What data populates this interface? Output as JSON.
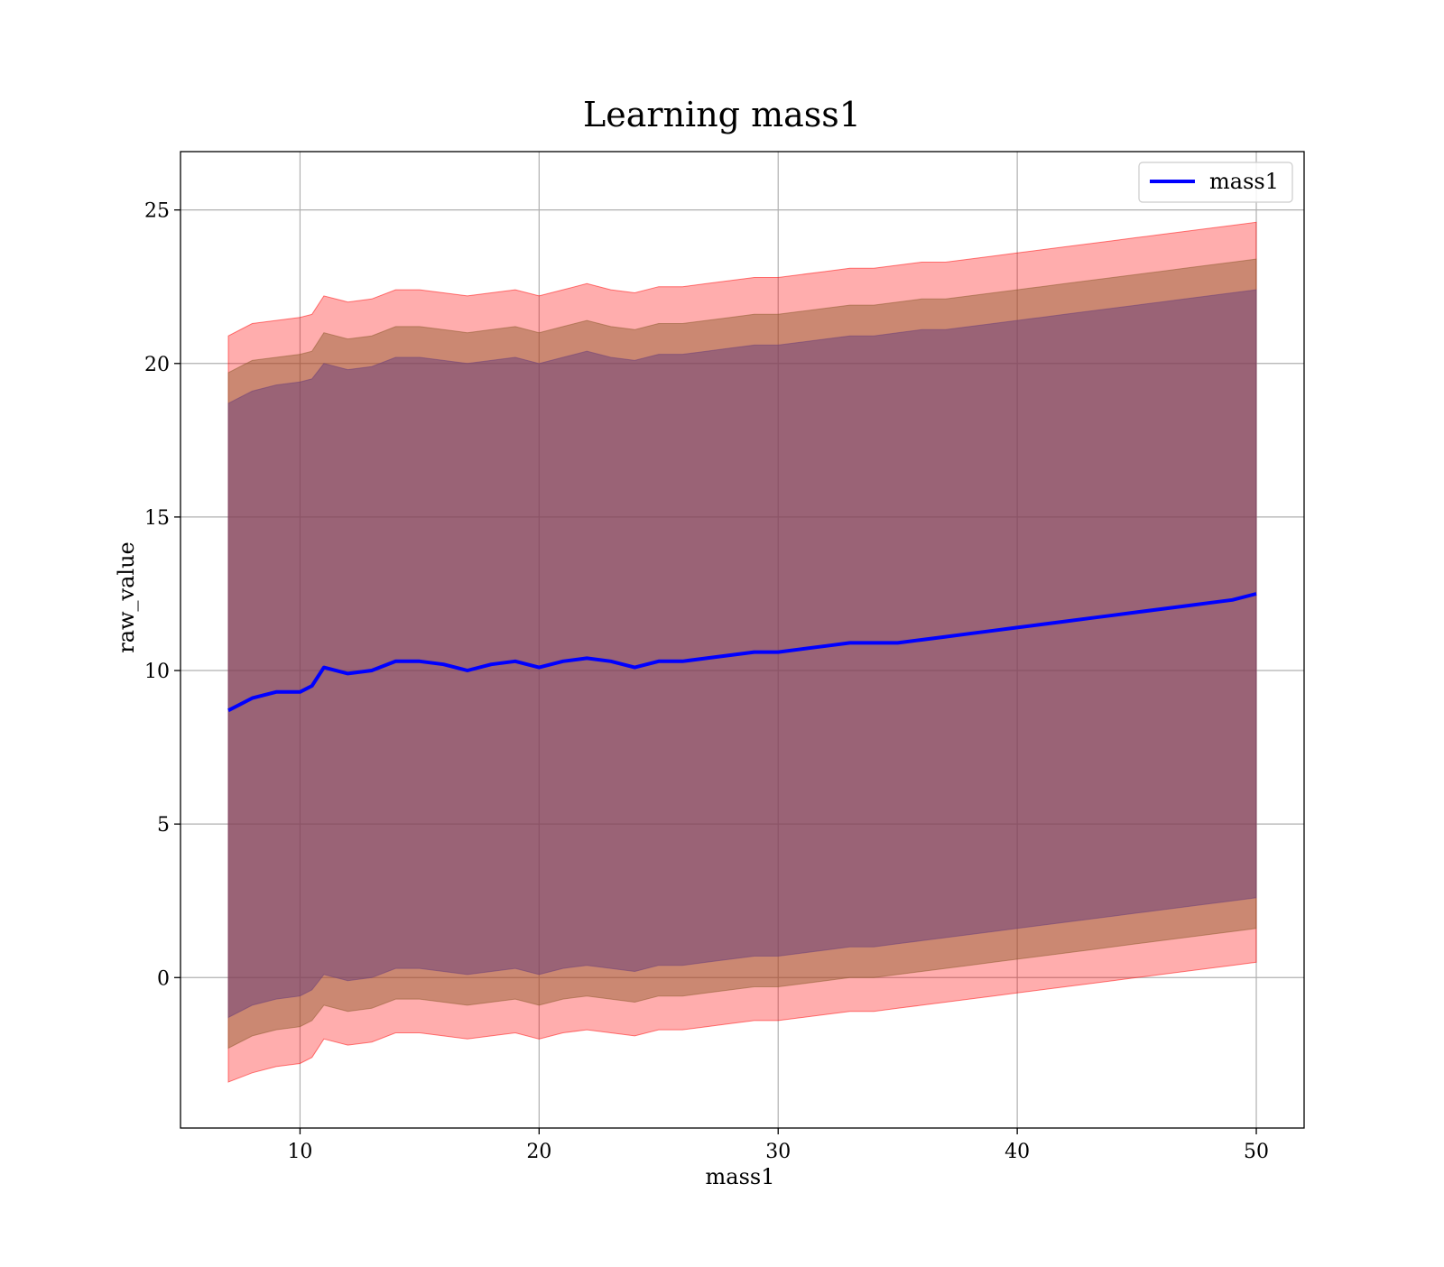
{
  "chart_data": {
    "type": "line",
    "title": "Learning mass1",
    "xlabel": "mass1",
    "ylabel": "raw_value",
    "xlim": [
      5,
      52
    ],
    "ylim": [
      -4.9,
      26.9
    ],
    "xticks": [
      10,
      20,
      30,
      40,
      50
    ],
    "yticks": [
      0,
      5,
      10,
      15,
      20,
      25
    ],
    "grid": true,
    "legend": {
      "position": "upper right",
      "entries": [
        "mass1"
      ]
    },
    "series": [
      {
        "name": "mass1",
        "color": "#0000ff",
        "x": [
          7,
          8,
          9,
          10,
          10.5,
          11,
          12,
          13,
          14,
          15,
          16,
          17,
          18,
          19,
          20,
          21,
          22,
          23,
          24,
          25,
          26,
          27,
          28,
          29,
          30,
          31,
          32,
          33,
          34,
          35,
          36,
          37,
          38,
          39,
          40,
          41,
          42,
          43,
          44,
          45,
          46,
          47,
          48,
          49,
          50
        ],
        "y": [
          8.7,
          9.1,
          9.3,
          9.3,
          9.5,
          10.1,
          9.9,
          10.0,
          10.3,
          10.3,
          10.2,
          10.0,
          10.2,
          10.3,
          10.1,
          10.3,
          10.4,
          10.3,
          10.1,
          10.3,
          10.3,
          10.4,
          10.5,
          10.6,
          10.6,
          10.7,
          10.8,
          10.9,
          10.9,
          10.9,
          11.0,
          11.1,
          11.2,
          11.3,
          11.4,
          11.5,
          11.6,
          11.7,
          11.8,
          11.9,
          12.0,
          12.1,
          12.2,
          12.3,
          12.5
        ]
      }
    ],
    "bands": [
      {
        "color": "#ff0000",
        "opacity": 0.32,
        "x": [
          7,
          8,
          9,
          10,
          10.5,
          11,
          12,
          13,
          14,
          15,
          16,
          17,
          18,
          19,
          20,
          21,
          22,
          23,
          24,
          25,
          26,
          27,
          28,
          29,
          30,
          31,
          32,
          33,
          34,
          35,
          36,
          37,
          38,
          39,
          40,
          41,
          42,
          43,
          44,
          45,
          46,
          47,
          48,
          49,
          50
        ],
        "upper": [
          20.9,
          21.3,
          21.4,
          21.5,
          21.6,
          22.2,
          22.0,
          22.1,
          22.4,
          22.4,
          22.3,
          22.2,
          22.3,
          22.4,
          22.2,
          22.4,
          22.6,
          22.4,
          22.3,
          22.5,
          22.5,
          22.6,
          22.7,
          22.8,
          22.8,
          22.9,
          23.0,
          23.1,
          23.1,
          23.2,
          23.3,
          23.3,
          23.4,
          23.5,
          23.6,
          23.7,
          23.8,
          23.9,
          24.0,
          24.1,
          24.2,
          24.3,
          24.4,
          24.5,
          24.6
        ],
        "lower": [
          -3.4,
          -3.1,
          -2.9,
          -2.8,
          -2.6,
          -2.0,
          -2.2,
          -2.1,
          -1.8,
          -1.8,
          -1.9,
          -2.0,
          -1.9,
          -1.8,
          -2.0,
          -1.8,
          -1.7,
          -1.8,
          -1.9,
          -1.7,
          -1.7,
          -1.6,
          -1.5,
          -1.4,
          -1.4,
          -1.3,
          -1.2,
          -1.1,
          -1.1,
          -1.0,
          -0.9,
          -0.8,
          -0.7,
          -0.6,
          -0.5,
          -0.4,
          -0.3,
          -0.2,
          -0.1,
          0.0,
          0.1,
          0.2,
          0.3,
          0.4,
          0.5
        ]
      },
      {
        "color": "#8b5a2b",
        "opacity": 0.45,
        "x": [
          7,
          8,
          9,
          10,
          10.5,
          11,
          12,
          13,
          14,
          15,
          16,
          17,
          18,
          19,
          20,
          21,
          22,
          23,
          24,
          25,
          26,
          27,
          28,
          29,
          30,
          31,
          32,
          33,
          34,
          35,
          36,
          37,
          38,
          39,
          40,
          41,
          42,
          43,
          44,
          45,
          46,
          47,
          48,
          49,
          50
        ],
        "upper": [
          19.7,
          20.1,
          20.2,
          20.3,
          20.4,
          21.0,
          20.8,
          20.9,
          21.2,
          21.2,
          21.1,
          21.0,
          21.1,
          21.2,
          21.0,
          21.2,
          21.4,
          21.2,
          21.1,
          21.3,
          21.3,
          21.4,
          21.5,
          21.6,
          21.6,
          21.7,
          21.8,
          21.9,
          21.9,
          22.0,
          22.1,
          22.1,
          22.2,
          22.3,
          22.4,
          22.5,
          22.6,
          22.7,
          22.8,
          22.9,
          23.0,
          23.1,
          23.2,
          23.3,
          23.4
        ],
        "lower": [
          -2.3,
          -1.9,
          -1.7,
          -1.6,
          -1.4,
          -0.9,
          -1.1,
          -1.0,
          -0.7,
          -0.7,
          -0.8,
          -0.9,
          -0.8,
          -0.7,
          -0.9,
          -0.7,
          -0.6,
          -0.7,
          -0.8,
          -0.6,
          -0.6,
          -0.5,
          -0.4,
          -0.3,
          -0.3,
          -0.2,
          -0.1,
          0.0,
          0.0,
          0.1,
          0.2,
          0.3,
          0.4,
          0.5,
          0.6,
          0.7,
          0.8,
          0.9,
          1.0,
          1.1,
          1.2,
          1.3,
          1.4,
          1.5,
          1.6
        ]
      },
      {
        "color": "#6a3d7a",
        "opacity": 0.5,
        "x": [
          7,
          8,
          9,
          10,
          10.5,
          11,
          12,
          13,
          14,
          15,
          16,
          17,
          18,
          19,
          20,
          21,
          22,
          23,
          24,
          25,
          26,
          27,
          28,
          29,
          30,
          31,
          32,
          33,
          34,
          35,
          36,
          37,
          38,
          39,
          40,
          41,
          42,
          43,
          44,
          45,
          46,
          47,
          48,
          49,
          50
        ],
        "upper": [
          18.7,
          19.1,
          19.3,
          19.4,
          19.5,
          20.0,
          19.8,
          19.9,
          20.2,
          20.2,
          20.1,
          20.0,
          20.1,
          20.2,
          20.0,
          20.2,
          20.4,
          20.2,
          20.1,
          20.3,
          20.3,
          20.4,
          20.5,
          20.6,
          20.6,
          20.7,
          20.8,
          20.9,
          20.9,
          21.0,
          21.1,
          21.1,
          21.2,
          21.3,
          21.4,
          21.5,
          21.6,
          21.7,
          21.8,
          21.9,
          22.0,
          22.1,
          22.2,
          22.3,
          22.4
        ],
        "lower": [
          -1.3,
          -0.9,
          -0.7,
          -0.6,
          -0.4,
          0.1,
          -0.1,
          0.0,
          0.3,
          0.3,
          0.2,
          0.1,
          0.2,
          0.3,
          0.1,
          0.3,
          0.4,
          0.3,
          0.2,
          0.4,
          0.4,
          0.5,
          0.6,
          0.7,
          0.7,
          0.8,
          0.9,
          1.0,
          1.0,
          1.1,
          1.2,
          1.3,
          1.4,
          1.5,
          1.6,
          1.7,
          1.8,
          1.9,
          2.0,
          2.1,
          2.2,
          2.3,
          2.4,
          2.5,
          2.6
        ]
      }
    ]
  }
}
